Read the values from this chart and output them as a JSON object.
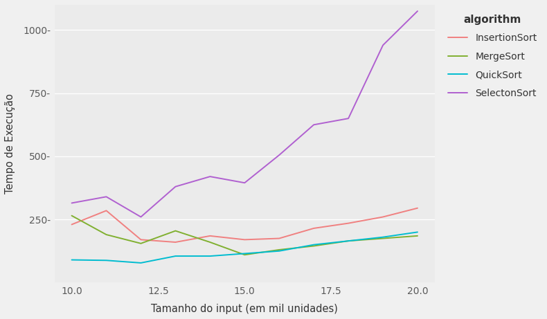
{
  "x": [
    10.0,
    11.0,
    12.0,
    13.0,
    14.0,
    15.0,
    16.0,
    17.0,
    18.0,
    19.0,
    20.0
  ],
  "InsertionSort": [
    230,
    285,
    170,
    160,
    185,
    170,
    175,
    215,
    235,
    260,
    295
  ],
  "MergeSort": [
    265,
    190,
    155,
    205,
    160,
    110,
    130,
    145,
    165,
    175,
    185
  ],
  "QuickSort": [
    90,
    88,
    78,
    105,
    105,
    115,
    125,
    150,
    165,
    180,
    200
  ],
  "SelectonSort": [
    315,
    340,
    260,
    380,
    420,
    395,
    505,
    625,
    650,
    940,
    1075
  ],
  "colors": {
    "InsertionSort": "#f08080",
    "MergeSort": "#80b030",
    "QuickSort": "#00bcd0",
    "SelectonSort": "#b060d0"
  },
  "xlabel": "Tamanho do input (em mil unidades)",
  "ylabel": "Tempo de Execução",
  "legend_title": "algorithm",
  "plot_bg_color": "#ebebeb",
  "outer_bg_color": "#f0f0f0",
  "xlim": [
    9.5,
    20.5
  ],
  "ylim": [
    0,
    1100
  ],
  "yticks": [
    250,
    500,
    750,
    1000
  ],
  "xticks": [
    10.0,
    12.5,
    15.0,
    17.5,
    20.0
  ],
  "grid_color": "#ffffff",
  "linewidth": 1.4,
  "tick_label_color": "#5a5a5a",
  "axis_label_color": "#333333",
  "legend_text_color": "#333333"
}
